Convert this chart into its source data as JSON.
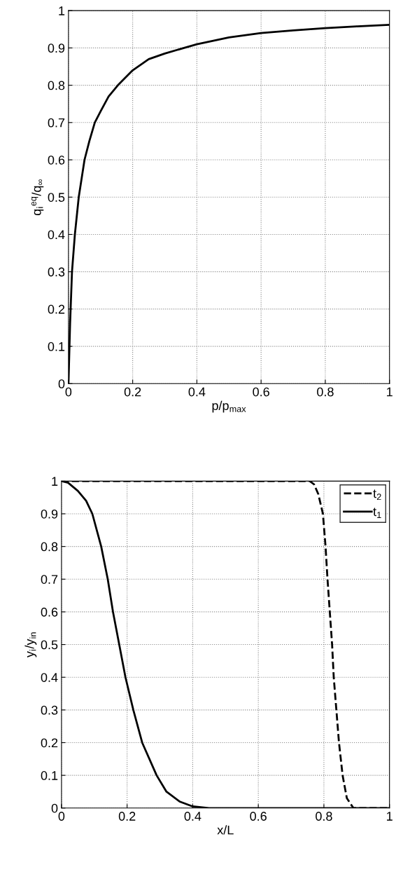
{
  "chart_data": [
    {
      "type": "line",
      "xlabel": "p/p$_{max}$",
      "ylabel": "q$_{i}$$^{eq}$/q$_{∞}$",
      "xlim": [
        0,
        1
      ],
      "ylim": [
        0,
        1
      ],
      "xticks": [
        0,
        0.2,
        0.4,
        0.6,
        0.8,
        1
      ],
      "yticks": [
        0,
        0.1,
        0.2,
        0.3,
        0.4,
        0.5,
        0.6,
        0.7,
        0.8,
        0.9,
        1
      ],
      "grid": true,
      "legend": false,
      "line_style": "solid",
      "series": [
        {
          "color": "#000000",
          "x": [
            0,
            0.005,
            0.011,
            0.02,
            0.032,
            0.05,
            0.065,
            0.082,
            0.1,
            0.125,
            0.154,
            0.2,
            0.25,
            0.3,
            0.36,
            0.4,
            0.5,
            0.6,
            0.7,
            0.8,
            0.9,
            1
          ],
          "values": [
            0,
            0.16,
            0.3,
            0.4,
            0.5,
            0.6,
            0.65,
            0.7,
            0.73,
            0.77,
            0.8,
            0.84,
            0.87,
            0.885,
            0.9,
            0.91,
            0.928,
            0.94,
            0.947,
            0.953,
            0.958,
            0.962
          ]
        }
      ]
    },
    {
      "type": "line",
      "xlabel": "x/L",
      "ylabel": "y$_{i}$/y$_{in}$",
      "xlim": [
        0,
        1
      ],
      "ylim": [
        0,
        1
      ],
      "xticks": [
        0,
        0.2,
        0.4,
        0.6,
        0.8,
        1
      ],
      "yticks": [
        0,
        0.1,
        0.2,
        0.3,
        0.4,
        0.5,
        0.6,
        0.7,
        0.8,
        0.9,
        1
      ],
      "grid": true,
      "legend": "top right",
      "series": [
        {
          "name": "t$_{2}$",
          "color": "#000000",
          "line_style": "dashed",
          "x": [
            0,
            0.2,
            0.4,
            0.6,
            0.757,
            0.77,
            0.783,
            0.797,
            0.805,
            0.811,
            0.818,
            0.825,
            0.83,
            0.838,
            0.846,
            0.857,
            0.87,
            0.89,
            0.95,
            1
          ],
          "values": [
            1,
            1,
            1,
            1,
            1,
            0.99,
            0.96,
            0.9,
            0.8,
            0.7,
            0.6,
            0.5,
            0.4,
            0.3,
            0.2,
            0.1,
            0.03,
            0,
            0,
            0
          ]
        },
        {
          "name": "t$_{1}$",
          "color": "#000000",
          "line_style": "solid",
          "x": [
            0,
            0.02,
            0.05,
            0.075,
            0.094,
            0.121,
            0.141,
            0.157,
            0.176,
            0.195,
            0.219,
            0.246,
            0.29,
            0.32,
            0.36,
            0.4,
            0.45,
            0.6,
            0.8,
            1
          ],
          "values": [
            1,
            0.995,
            0.97,
            0.94,
            0.9,
            0.8,
            0.7,
            0.6,
            0.5,
            0.4,
            0.3,
            0.2,
            0.1,
            0.05,
            0.02,
            0.005,
            0,
            0,
            0,
            0
          ]
        }
      ]
    }
  ]
}
